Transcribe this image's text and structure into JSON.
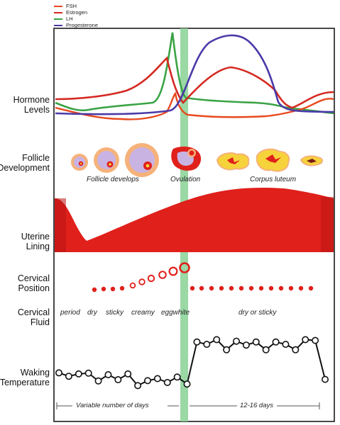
{
  "legend": [
    {
      "label": "FSH",
      "color": "#e8491e"
    },
    {
      "label": "Estrogen",
      "color": "#d42a22"
    },
    {
      "label": "LH",
      "color": "#3aa346"
    },
    {
      "label": "Progesterone",
      "color": "#4a3aa8"
    }
  ],
  "rows": {
    "hormone": [
      "Hormone",
      "Levels"
    ],
    "follicle": [
      "Follicle",
      "Development"
    ],
    "uterine": [
      "Uterine",
      "Lining"
    ],
    "position": [
      "Cervical",
      "Position"
    ],
    "fluid": [
      "Cervical",
      "Fluid"
    ],
    "temperature": [
      "Waking",
      "Temperature"
    ]
  },
  "follicle_captions": {
    "develops": "Follicle develops",
    "ovulation": "Ovulation",
    "luteum": "Corpus luteum"
  },
  "fluid_labels": {
    "period": "period",
    "dry": "dry",
    "sticky": "sticky",
    "creamy": "creamy",
    "eggwhite": "eggwhite",
    "luteal": "dry or sticky"
  },
  "phases": {
    "follicular": "Variable number of days",
    "luteal": "12-16 days"
  },
  "colors": {
    "red": "#e0201b",
    "ovulation_band": "#8fd49a",
    "follicle_yellow": "#f6d33a",
    "follicle_halo": "#f5b27a",
    "follicle_lilac": "#c9b3e3"
  },
  "temperature_series": [
    0.62,
    0.4,
    0.55,
    0.6,
    0.1,
    0.5,
    0.18,
    0.55,
    -0.2,
    0.12,
    0.25,
    0.0,
    0.35,
    -0.1,
    2.6,
    2.45,
    2.75,
    2.1,
    2.65,
    2.4,
    2.6,
    2.1,
    2.6,
    2.45,
    2.1,
    2.75,
    2.7,
    0.2
  ]
}
